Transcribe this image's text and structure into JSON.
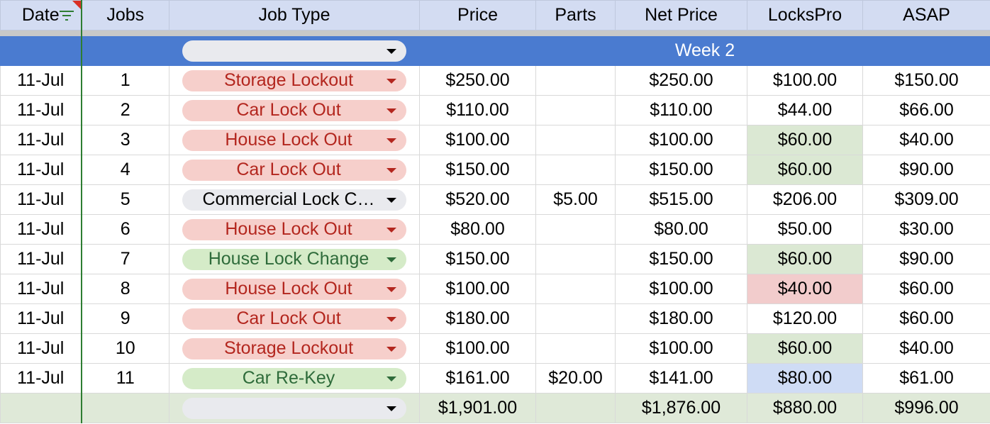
{
  "headers": [
    "Date",
    "Jobs",
    "Job Type",
    "Price",
    "Parts",
    "Net Price",
    "LocksPro",
    "ASAP"
  ],
  "week_label": "Week 2",
  "colors": {
    "header_bg": "#d3dcf2",
    "week_bg": "#4a7bd0",
    "chip_red": "#f6cfcb",
    "chip_green": "#d5ebc8",
    "chip_gray": "#e9eaee",
    "total_bg": "#dfe9d8"
  },
  "rows": [
    {
      "date": "11-Jul",
      "job": "1",
      "type": "Storage Lockout",
      "chip": "red",
      "price": "$250.00",
      "parts": "",
      "net": "$250.00",
      "lockspro": "$100.00",
      "lockspro_hl": "",
      "asap": "$150.00"
    },
    {
      "date": "11-Jul",
      "job": "2",
      "type": "Car Lock Out",
      "chip": "red",
      "price": "$110.00",
      "parts": "",
      "net": "$110.00",
      "lockspro": "$44.00",
      "lockspro_hl": "",
      "asap": "$66.00"
    },
    {
      "date": "11-Jul",
      "job": "3",
      "type": "House Lock Out",
      "chip": "red",
      "price": "$100.00",
      "parts": "",
      "net": "$100.00",
      "lockspro": "$60.00",
      "lockspro_hl": "green",
      "asap": "$40.00"
    },
    {
      "date": "11-Jul",
      "job": "4",
      "type": "Car Lock Out",
      "chip": "red",
      "price": "$150.00",
      "parts": "",
      "net": "$150.00",
      "lockspro": "$60.00",
      "lockspro_hl": "green",
      "asap": "$90.00"
    },
    {
      "date": "11-Jul",
      "job": "5",
      "type": "Commercial Lock C…",
      "chip": "gray",
      "price": "$520.00",
      "parts": "$5.00",
      "net": "$515.00",
      "lockspro": "$206.00",
      "lockspro_hl": "",
      "asap": "$309.00"
    },
    {
      "date": "11-Jul",
      "job": "6",
      "type": "House Lock Out",
      "chip": "red",
      "price": "$80.00",
      "parts": "",
      "net": "$80.00",
      "lockspro": "$50.00",
      "lockspro_hl": "",
      "asap": "$30.00"
    },
    {
      "date": "11-Jul",
      "job": "7",
      "type": "House Lock Change",
      "chip": "green",
      "price": "$150.00",
      "parts": "",
      "net": "$150.00",
      "lockspro": "$60.00",
      "lockspro_hl": "green",
      "asap": "$90.00"
    },
    {
      "date": "11-Jul",
      "job": "8",
      "type": "House Lock Out",
      "chip": "red",
      "price": "$100.00",
      "parts": "",
      "net": "$100.00",
      "lockspro": "$40.00",
      "lockspro_hl": "red",
      "asap": "$60.00"
    },
    {
      "date": "11-Jul",
      "job": "9",
      "type": "Car Lock Out",
      "chip": "red",
      "price": "$180.00",
      "parts": "",
      "net": "$180.00",
      "lockspro": "$120.00",
      "lockspro_hl": "",
      "asap": "$60.00"
    },
    {
      "date": "11-Jul",
      "job": "10",
      "type": "Storage Lockout",
      "chip": "red",
      "price": "$100.00",
      "parts": "",
      "net": "$100.00",
      "lockspro": "$60.00",
      "lockspro_hl": "green",
      "asap": "$40.00"
    },
    {
      "date": "11-Jul",
      "job": "11",
      "type": "Car Re-Key",
      "chip": "green",
      "price": "$161.00",
      "parts": "$20.00",
      "net": "$141.00",
      "lockspro": "$80.00",
      "lockspro_hl": "blue",
      "asap": "$61.00"
    }
  ],
  "totals": {
    "price": "$1,901.00",
    "parts": "",
    "net": "$1,876.00",
    "lockspro": "$880.00",
    "asap": "$996.00"
  }
}
